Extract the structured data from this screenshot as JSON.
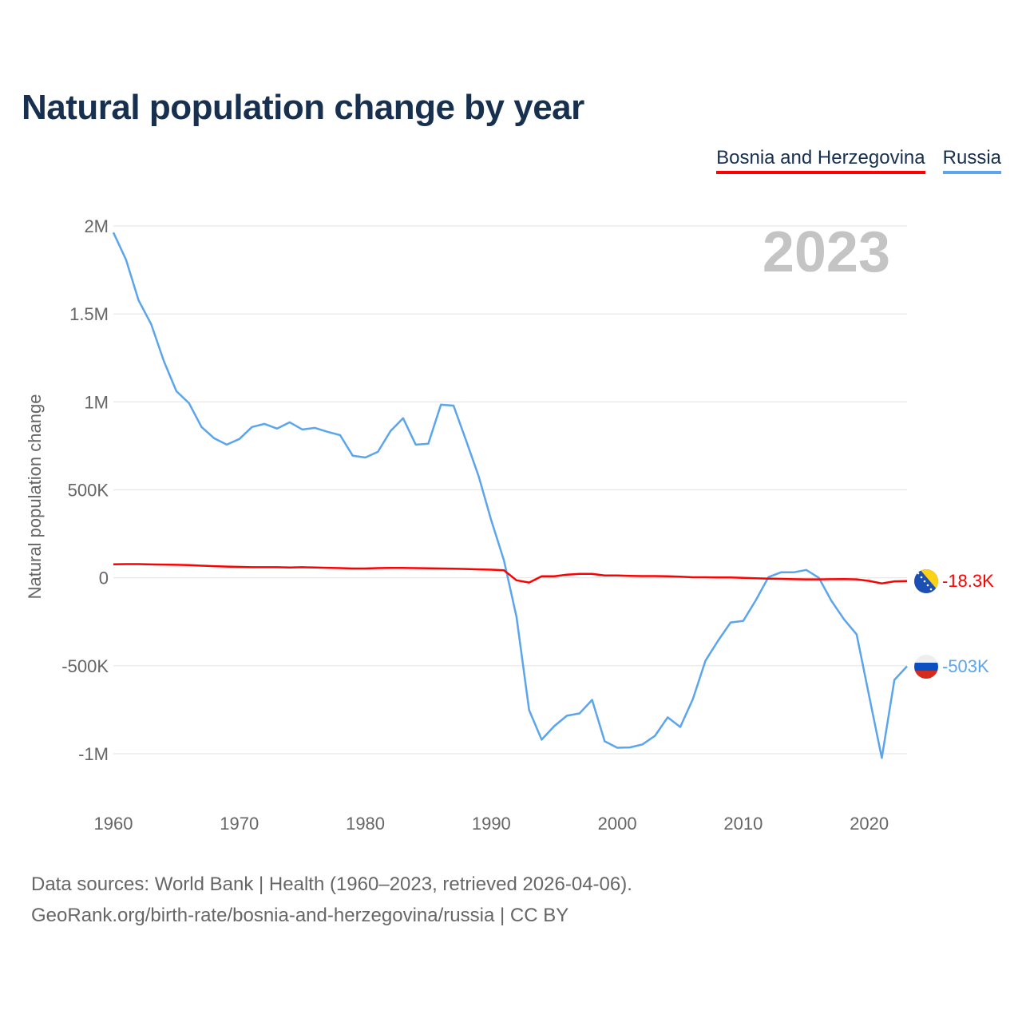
{
  "title": "Natural population change by year",
  "legend": [
    {
      "name": "Bosnia and Herzegovina",
      "color": "#ff0000"
    },
    {
      "name": "Russia",
      "color": "#5aa5ee"
    }
  ],
  "year_watermark": "2023",
  "footer": {
    "line1": "Data sources: World Bank | Health (1960–2023, retrieved 2026-04-06).",
    "line2": "GeoRank.org/birth-rate/bosnia-and-herzegovina/russia | CC BY"
  },
  "chart_data": {
    "type": "line",
    "title": "Natural population change by year",
    "xlabel": "",
    "ylabel": "Natural population change",
    "xlim": [
      1960,
      2023
    ],
    "ylim": [
      -1000000,
      2000000
    ],
    "x_ticks": [
      1960,
      1970,
      1980,
      1990,
      2000,
      2010,
      2020
    ],
    "x_tick_labels": [
      "1960",
      "1970",
      "1980",
      "1990",
      "2000",
      "2010",
      "2020"
    ],
    "y_ticks": [
      2000000,
      1500000,
      1000000,
      500000,
      0,
      -500000,
      -1000000
    ],
    "y_tick_labels": [
      "2M",
      "1.5M",
      "1M",
      "500K",
      "0",
      "-500K",
      "-1M"
    ],
    "grid": true,
    "legend_position": "top-right",
    "x": [
      1960,
      1961,
      1962,
      1963,
      1964,
      1965,
      1966,
      1967,
      1968,
      1969,
      1970,
      1971,
      1972,
      1973,
      1974,
      1975,
      1976,
      1977,
      1978,
      1979,
      1980,
      1981,
      1982,
      1983,
      1984,
      1985,
      1986,
      1987,
      1988,
      1989,
      1990,
      1991,
      1992,
      1993,
      1994,
      1995,
      1996,
      1997,
      1998,
      1999,
      2000,
      2001,
      2002,
      2003,
      2004,
      2005,
      2006,
      2007,
      2008,
      2009,
      2010,
      2011,
      2012,
      2013,
      2014,
      2015,
      2016,
      2017,
      2018,
      2019,
      2020,
      2021,
      2022,
      2023
    ],
    "series": [
      {
        "name": "Bosnia and Herzegovina",
        "color": "#ff0000",
        "end_label": "-18.3K",
        "values": [
          77000,
          78000,
          78000,
          76000,
          75000,
          74000,
          72000,
          69000,
          66000,
          64000,
          62000,
          60000,
          60000,
          60000,
          59000,
          60000,
          59000,
          57000,
          55000,
          53000,
          53000,
          55000,
          56000,
          56000,
          55000,
          54000,
          53000,
          52000,
          50000,
          48000,
          46000,
          43000,
          -14000,
          -27000,
          9000,
          9000,
          18000,
          22000,
          22000,
          13000,
          13000,
          11000,
          10000,
          10000,
          9000,
          6000,
          3000,
          3000,
          2000,
          2000,
          0,
          -3000,
          -5000,
          -6000,
          -8000,
          -9000,
          -9000,
          -8000,
          -7000,
          -9000,
          -18000,
          -32000,
          -20000,
          -18300
        ]
      },
      {
        "name": "Russia",
        "color": "#5aa5ee",
        "end_label": "-503K",
        "values": [
          1963000,
          1809000,
          1577000,
          1442000,
          1233000,
          1061000,
          993000,
          857000,
          793000,
          757000,
          789000,
          857000,
          875000,
          848000,
          884000,
          843000,
          852000,
          830000,
          811000,
          694000,
          684000,
          716000,
          834000,
          907000,
          757000,
          762000,
          984000,
          979000,
          780000,
          576000,
          326000,
          100000,
          -222000,
          -752000,
          -920000,
          -843000,
          -784000,
          -771000,
          -694000,
          -929000,
          -966000,
          -964000,
          -947000,
          -898000,
          -793000,
          -848000,
          -689000,
          -471000,
          -358000,
          -254000,
          -245000,
          -127000,
          4000,
          31000,
          31000,
          45000,
          0,
          -131000,
          -236000,
          -322000,
          -675000,
          -1024000,
          -580000,
          -503000
        ]
      }
    ]
  }
}
